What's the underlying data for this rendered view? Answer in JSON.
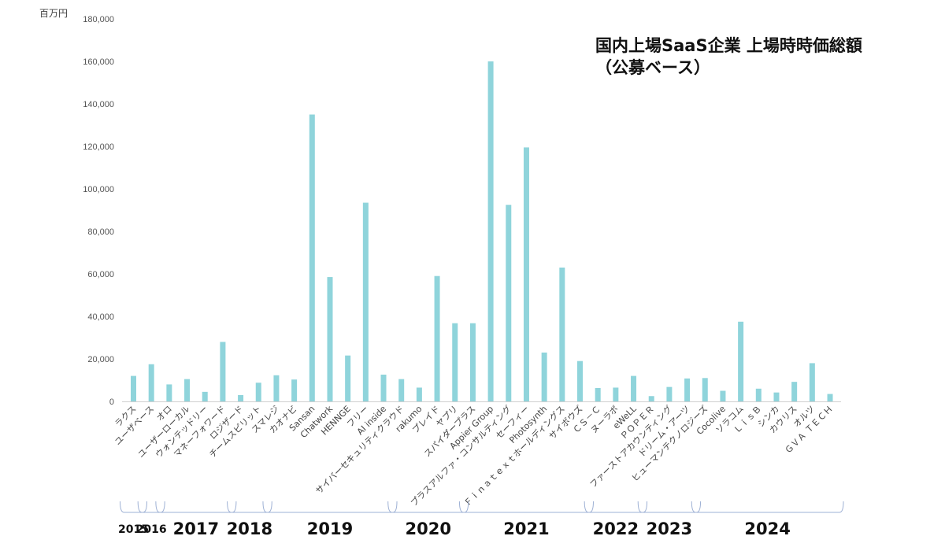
{
  "chart_data": {
    "type": "bar",
    "title": "国内上場SaaS企業 上場時時価総額",
    "subtitle": "（公募ベース）",
    "ylabel": "百万円",
    "ylim": [
      0,
      180000
    ],
    "yticks": [
      "0",
      "20,000",
      "40,000",
      "60,000",
      "80,000",
      "100,000",
      "120,000",
      "140,000",
      "160,000",
      "180,000"
    ],
    "grid": false,
    "bar_color": "#8fd4db",
    "categories": [
      "ラクス",
      "ユーザベース",
      "オロ",
      "ユーザーローカル",
      "ウォンテッドリー",
      "マネーフォワード",
      "ロジザード",
      "チームスピリット",
      "スマレジ",
      "カオナビ",
      "Sansan",
      "Chatwork",
      "HENNGE",
      "フリー",
      "AI inside",
      "サイバーセキュリティクラウド",
      "rakumo",
      "プレイド",
      "ヤプリ",
      "スパイダープラス",
      "Appier Group",
      "プラスアルファ・コンサルティング",
      "セーフィー",
      "Photosynth",
      "Ｆｉｎａｔｅｘｔホールディングス",
      "サイボウズ",
      "ＣＳ－Ｃ",
      "ヌーラボ",
      "eWeLL",
      "ＰＯＰＥＲ",
      "ファーストアカウンティング",
      "ドリーム・アーツ",
      "ヒューマンテクノロジーズ",
      "Cocolive",
      "ソラコム",
      "ＬｉｓＢ",
      "シンカ",
      "カウリス",
      "オルツ",
      "ＧＶＡ ＴＥＣＨ"
    ],
    "values": [
      12000,
      17500,
      8000,
      10500,
      4500,
      28000,
      3000,
      8800,
      12300,
      10300,
      135000,
      58500,
      21600,
      93500,
      12600,
      10500,
      6500,
      59000,
      36800,
      36800,
      160000,
      92500,
      119500,
      23000,
      63000,
      19000,
      6300,
      6500,
      12000,
      2500,
      6800,
      10800,
      11000,
      5000,
      37500,
      6000,
      4200,
      9200,
      18000,
      3500
    ],
    "year_groups": [
      {
        "label": "2015",
        "first": 0,
        "last": 0
      },
      {
        "label": "2016",
        "first": 1,
        "last": 1
      },
      {
        "label": "2017",
        "first": 2,
        "last": 5
      },
      {
        "label": "2018",
        "first": 6,
        "last": 7
      },
      {
        "label": "2019",
        "first": 8,
        "last": 14
      },
      {
        "label": "2020",
        "first": 15,
        "last": 18
      },
      {
        "label": "2021",
        "first": 19,
        "last": 25
      },
      {
        "label": "2022",
        "first": 26,
        "last": 28
      },
      {
        "label": "2023",
        "first": 29,
        "last": 31
      },
      {
        "label": "2024",
        "first": 32,
        "last": 39
      }
    ]
  }
}
